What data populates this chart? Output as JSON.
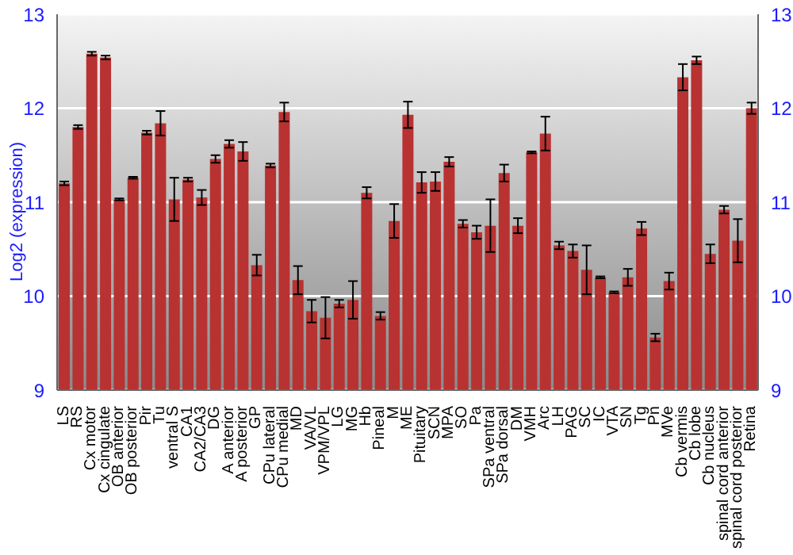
{
  "chart_data": {
    "type": "bar",
    "ylabel": "Log2 (expression)",
    "categories": [
      "LS",
      "RS",
      "Cx motor",
      "Cx cingulate",
      "OB anterior",
      "OB posterior",
      "Pir",
      "Tu",
      "ventral S",
      "CA1",
      "CA2/CA3",
      "DG",
      "A anterior",
      "A posterior",
      "GP",
      "CPu lateral",
      "CPu medial",
      "MD",
      "VA/VL",
      "VPM/VPL",
      "LG",
      "MG",
      "Hb",
      "Pineal",
      "M",
      "ME",
      "Pituitary",
      "SCN",
      "MPA",
      "SO",
      "Pa",
      "SPa ventral",
      "SPa dorsal",
      "DM",
      "VMH",
      "Arc",
      "LH",
      "PAG",
      "SC",
      "IC",
      "VTA",
      "SN",
      "Tg",
      "Pn",
      "MVe",
      "Cb vermis",
      "Cb lobe",
      "Cb nucleus",
      "spinal cord anterior",
      "spinal cord posterior",
      "Retina"
    ],
    "values": [
      11.2,
      11.8,
      12.58,
      12.54,
      11.03,
      11.26,
      11.74,
      11.84,
      11.03,
      11.24,
      11.05,
      11.46,
      11.62,
      11.54,
      10.33,
      11.39,
      11.96,
      10.17,
      9.84,
      9.77,
      9.92,
      9.96,
      11.1,
      9.79,
      10.8,
      11.93,
      11.21,
      11.22,
      11.43,
      10.77,
      10.68,
      10.75,
      11.31,
      10.75,
      11.53,
      11.73,
      10.54,
      10.48,
      10.28,
      10.2,
      10.04,
      10.2,
      10.72,
      9.56,
      10.16,
      12.33,
      12.51,
      10.45,
      10.92,
      10.59,
      12.0
    ],
    "errors": [
      0.02,
      0.02,
      0.02,
      0.02,
      0.01,
      0.01,
      0.02,
      0.13,
      0.23,
      0.02,
      0.08,
      0.04,
      0.04,
      0.1,
      0.11,
      0.02,
      0.1,
      0.15,
      0.12,
      0.22,
      0.04,
      0.2,
      0.06,
      0.04,
      0.18,
      0.14,
      0.11,
      0.1,
      0.05,
      0.04,
      0.07,
      0.28,
      0.09,
      0.08,
      0.01,
      0.18,
      0.04,
      0.07,
      0.26,
      0.01,
      0.01,
      0.09,
      0.07,
      0.04,
      0.09,
      0.14,
      0.04,
      0.1,
      0.04,
      0.23,
      0.06
    ],
    "color": "#b83232",
    "ylim": [
      9,
      13
    ],
    "yticks": [
      9,
      10,
      11,
      12,
      13
    ],
    "y2lim": [
      9,
      13
    ],
    "y2ticks": [
      9,
      10,
      11,
      12,
      13
    ],
    "grid": "y"
  }
}
